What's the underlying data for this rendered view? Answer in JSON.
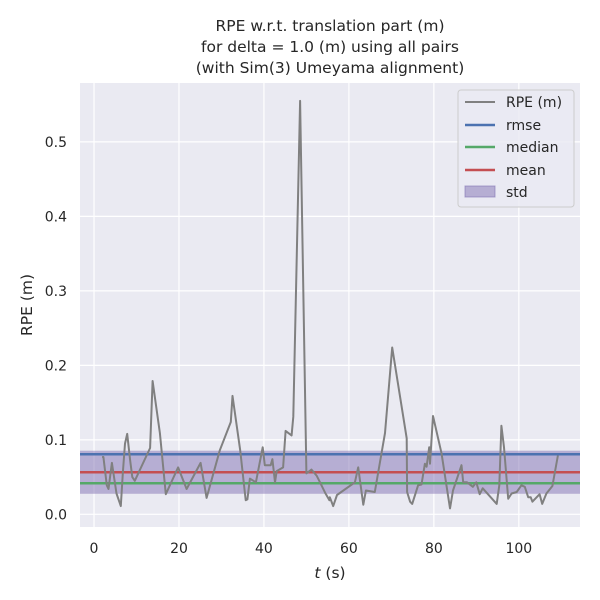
{
  "chart_data": {
    "type": "line",
    "title": [
      "RPE w.r.t. translation part (m)",
      "for delta = 1.0 (m) using all pairs",
      "(with Sim(3) Umeyama alignment)"
    ],
    "xlabel_italic": "t",
    "xlabel_rest": " (s)",
    "ylabel": "RPE (m)",
    "xlim": [
      -3.3,
      114.4
    ],
    "ylim": [
      -0.017,
      0.579
    ],
    "xticks": [
      0,
      20,
      40,
      60,
      80,
      100
    ],
    "yticks": [
      0.0,
      0.1,
      0.2,
      0.3,
      0.4,
      0.5
    ],
    "xtick_labels": [
      "0",
      "20",
      "40",
      "60",
      "80",
      "100"
    ],
    "ytick_labels": [
      "0.0",
      "0.1",
      "0.2",
      "0.3",
      "0.4",
      "0.5"
    ],
    "grid": true,
    "legend_position": "top-right",
    "colors": {
      "rpe": "#808080",
      "rmse": "#4c72b0",
      "median": "#55a868",
      "mean": "#c44e52",
      "std": "#8172b3",
      "bg": "#eaeaf2"
    },
    "legend": [
      "RPE (m)",
      "rmse",
      "median",
      "mean",
      "std"
    ],
    "stats": {
      "rmse": 0.0806,
      "median": 0.0417,
      "mean": 0.0565,
      "std": 0.0289
    },
    "series": [
      {
        "name": "RPE (m)",
        "t": [
          1.9,
          2.2,
          3.0,
          3.4,
          4.2,
          5.3,
          6.3,
          6.8,
          7.3,
          7.8,
          8.5,
          9.0,
          9.6,
          13.2,
          13.8,
          15.5,
          16.9,
          19.8,
          21.8,
          25.1,
          26.5,
          29.6,
          32.2,
          32.6,
          34.4,
          35.7,
          36.1,
          36.7,
          38.1,
          39.7,
          40.2,
          41.6,
          42.0,
          42.6,
          43.0,
          44.5,
          45.1,
          46.5,
          46.9,
          48.5,
          50.0,
          51.2,
          52.4,
          53.2,
          54.4,
          55.4,
          55.5,
          56.3,
          57.2,
          61.4,
          62.2,
          63.4,
          64.0,
          66.1,
          68.5,
          70.2,
          73.6,
          73.7,
          74.4,
          74.9,
          76.3,
          77.1,
          77.9,
          78.3,
          78.9,
          79.1,
          79.8,
          81.8,
          83.8,
          84.5,
          86.5,
          86.9,
          87.8,
          89.2,
          90.0,
          90.8,
          91.5,
          94.8,
          95.4,
          95.9,
          96.5,
          97.5,
          98.3,
          99.5,
          100.6,
          101.4,
          102.2,
          102.8,
          103.2,
          104.9,
          105.5,
          106.5,
          107.9,
          109.2
        ],
        "y": [
          0.077,
          0.077,
          0.039,
          0.034,
          0.069,
          0.028,
          0.011,
          0.057,
          0.095,
          0.108,
          0.073,
          0.05,
          0.045,
          0.089,
          0.179,
          0.109,
          0.027,
          0.063,
          0.034,
          0.069,
          0.022,
          0.086,
          0.124,
          0.159,
          0.086,
          0.019,
          0.02,
          0.048,
          0.043,
          0.09,
          0.066,
          0.066,
          0.074,
          0.043,
          0.058,
          0.063,
          0.112,
          0.106,
          0.131,
          0.555,
          0.055,
          0.06,
          0.052,
          0.043,
          0.029,
          0.019,
          0.023,
          0.011,
          0.026,
          0.043,
          0.063,
          0.013,
          0.032,
          0.03,
          0.109,
          0.224,
          0.102,
          0.03,
          0.017,
          0.014,
          0.039,
          0.04,
          0.068,
          0.064,
          0.09,
          0.068,
          0.132,
          0.082,
          0.008,
          0.032,
          0.066,
          0.043,
          0.043,
          0.037,
          0.043,
          0.027,
          0.035,
          0.014,
          0.039,
          0.119,
          0.09,
          0.021,
          0.028,
          0.03,
          0.039,
          0.037,
          0.023,
          0.023,
          0.017,
          0.027,
          0.014,
          0.028,
          0.038,
          0.079
        ]
      }
    ]
  }
}
